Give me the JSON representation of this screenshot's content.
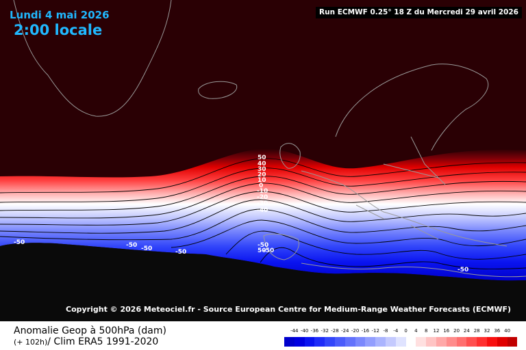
{
  "header": {
    "date": "Lundi 4 mai 2026",
    "time": "2:00 locale",
    "run": "Run ECMWF 0.25° 18 Z du Mercredi 29 avril 2026"
  },
  "copyright": "Copyright © 2026 Meteociel.fr - Source European Centre for Medium-Range Weather Forecasts (ECMWF)",
  "footer": {
    "title_line1": "Anomalie Geop à 500hPa (dam)",
    "title_line2_prefix": "(+ 102h)",
    "title_line2_rest": "/ Clim ERA5 1991-2020"
  },
  "legend": {
    "labels": [
      "-44",
      "-40",
      "-36",
      "-32",
      "-28",
      "-24",
      "-20",
      "-16",
      "-12",
      "-8",
      "-4",
      "0",
      "4",
      "8",
      "12",
      "16",
      "20",
      "24",
      "28",
      "32",
      "36",
      "40"
    ],
    "colors": [
      "#0000cc",
      "#0000e0",
      "#0a14f0",
      "#1e2cf8",
      "#3246fa",
      "#4a5cfb",
      "#6272fc",
      "#7a88fd",
      "#929efe",
      "#aab4fe",
      "#c4cafe",
      "#dfe3ff",
      "#ffffff",
      "#ffe0e0",
      "#ffc4c4",
      "#ffa8a8",
      "#ff8c8c",
      "#ff7070",
      "#ff5050",
      "#ff3030",
      "#f81010",
      "#e00000",
      "#c00000"
    ]
  },
  "contour_labels": {
    "ridge": [
      "50",
      "40",
      "30",
      "20",
      "10",
      "0",
      "-10",
      "-20",
      "-30",
      "-40"
    ],
    "south": [
      "-50",
      "-50",
      "-50",
      "-50",
      "-50",
      "50",
      "-50",
      "-50"
    ]
  },
  "colors": {
    "background": "#2a0004",
    "land_mask": "#0a0a0a",
    "coastline": "#9a9a9a",
    "title_text": "#20b8ff"
  }
}
